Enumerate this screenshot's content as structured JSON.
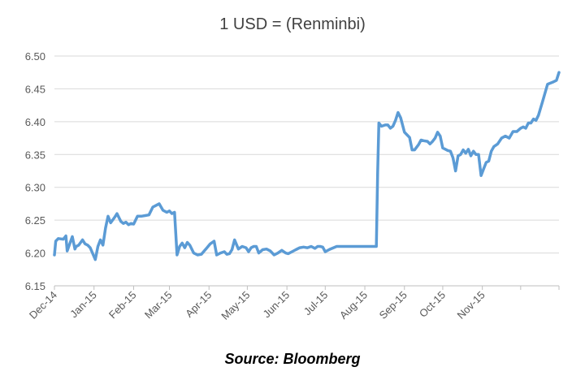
{
  "chart_data": {
    "type": "line",
    "title": "1 USD = (Renminbi)",
    "xlabel": "",
    "ylabel": "",
    "ylim": [
      6.15,
      6.5
    ],
    "yticks": [
      "6.15",
      "6.20",
      "6.25",
      "6.30",
      "6.35",
      "6.40",
      "6.45",
      "6.50"
    ],
    "xticks": [
      "Dec-14",
      "Jan-15",
      "Feb-15",
      "Mar-15",
      "Apr-15",
      "May-15",
      "Jun-15",
      "Jul-15",
      "Aug-15",
      "Sep-15",
      "Oct-15",
      "Nov-15"
    ],
    "grid": "horizontal",
    "legend": "none",
    "color": "#5b9bd5",
    "series": [
      {
        "x": [
          "2014-12-01",
          "2014-12-02",
          "2014-12-04",
          "2014-12-08",
          "2014-12-10",
          "2014-12-11",
          "2014-12-15",
          "2014-12-17",
          "2014-12-18",
          "2014-12-20",
          "2014-12-23",
          "2014-12-25",
          "2014-12-27",
          "2014-12-29",
          "2015-01-02",
          "2015-01-04",
          "2015-01-06",
          "2015-01-08",
          "2015-01-10",
          "2015-01-12",
          "2015-01-14",
          "2015-01-17",
          "2015-01-19",
          "2015-01-22",
          "2015-01-24",
          "2015-01-26",
          "2015-01-28",
          "2015-01-30",
          "2015-02-01",
          "2015-02-04",
          "2015-02-07",
          "2015-02-10",
          "2015-02-13",
          "2015-02-16",
          "2015-02-18",
          "2015-02-21",
          "2015-02-24",
          "2015-02-27",
          "2015-03-01",
          "2015-03-03",
          "2015-03-05",
          "2015-03-07",
          "2015-03-09",
          "2015-03-11",
          "2015-03-13",
          "2015-03-15",
          "2015-03-17",
          "2015-03-20",
          "2015-03-23",
          "2015-03-26",
          "2015-03-30",
          "2015-04-02",
          "2015-04-05",
          "2015-04-07",
          "2015-04-10",
          "2015-04-13",
          "2015-04-15",
          "2015-04-17",
          "2015-04-19",
          "2015-04-21",
          "2015-04-24",
          "2015-04-27",
          "2015-04-30",
          "2015-05-02",
          "2015-05-04",
          "2015-05-06",
          "2015-05-08",
          "2015-05-10",
          "2015-05-13",
          "2015-05-16",
          "2015-05-19",
          "2015-05-22",
          "2015-05-25",
          "2015-05-28",
          "2015-05-31",
          "2015-06-02",
          "2015-06-05",
          "2015-06-08",
          "2015-06-11",
          "2015-06-14",
          "2015-06-17",
          "2015-06-20",
          "2015-06-23",
          "2015-06-25",
          "2015-06-27",
          "2015-06-29",
          "2015-07-01",
          "2015-07-05",
          "2015-07-10",
          "2015-07-15",
          "2015-07-20",
          "2015-07-25",
          "2015-07-30",
          "2015-08-03",
          "2015-08-05",
          "2015-08-07",
          "2015-08-10",
          "2015-08-11",
          "2015-08-12",
          "2015-08-14",
          "2015-08-17",
          "2015-08-19",
          "2015-08-21",
          "2015-08-23",
          "2015-08-25",
          "2015-08-27",
          "2015-08-29",
          "2015-09-01",
          "2015-09-03",
          "2015-09-05",
          "2015-09-07",
          "2015-09-09",
          "2015-09-12",
          "2015-09-14",
          "2015-09-16",
          "2015-09-19",
          "2015-09-21",
          "2015-09-23",
          "2015-09-25",
          "2015-09-27",
          "2015-09-29",
          "2015-10-01",
          "2015-10-03",
          "2015-10-05",
          "2015-10-07",
          "2015-10-09",
          "2015-10-11",
          "2015-10-13",
          "2015-10-15",
          "2015-10-17",
          "2015-10-19",
          "2015-10-21",
          "2015-10-23",
          "2015-10-25",
          "2015-10-27",
          "2015-10-29",
          "2015-10-31",
          "2015-11-02",
          "2015-11-04",
          "2015-11-06",
          "2015-11-08",
          "2015-11-10",
          "2015-11-13",
          "2015-11-16",
          "2015-11-19",
          "2015-11-22",
          "2015-11-25",
          "2015-11-28",
          "2015-12-01",
          "2015-12-03",
          "2015-12-05",
          "2015-12-07",
          "2015-12-09",
          "2015-12-11",
          "2015-12-13",
          "2015-12-15",
          "2015-12-18",
          "2015-12-22",
          "2015-12-26",
          "2015-12-29",
          "2015-12-31"
        ],
        "y": [
          6.197,
          6.218,
          6.222,
          6.221,
          6.226,
          6.203,
          6.225,
          6.206,
          6.21,
          6.212,
          6.22,
          6.214,
          6.212,
          6.208,
          6.19,
          6.21,
          6.22,
          6.212,
          6.238,
          6.256,
          6.246,
          6.254,
          6.26,
          6.248,
          6.245,
          6.247,
          6.243,
          6.245,
          6.244,
          6.256,
          6.256,
          6.257,
          6.258,
          6.27,
          6.272,
          6.275,
          6.265,
          6.262,
          6.264,
          6.26,
          6.262,
          6.197,
          6.21,
          6.215,
          6.208,
          6.216,
          6.212,
          6.2,
          6.197,
          6.198,
          6.207,
          6.214,
          6.218,
          6.197,
          6.2,
          6.202,
          6.198,
          6.199,
          6.205,
          6.22,
          6.206,
          6.21,
          6.208,
          6.202,
          6.208,
          6.21,
          6.21,
          6.2,
          6.205,
          6.206,
          6.203,
          6.197,
          6.2,
          6.204,
          6.2,
          6.199,
          6.202,
          6.205,
          6.208,
          6.209,
          6.208,
          6.21,
          6.207,
          6.21,
          6.21,
          6.209,
          6.202,
          6.206,
          6.21,
          6.21,
          6.21,
          6.21,
          6.21,
          6.21,
          6.21,
          6.21,
          6.21,
          6.322,
          6.398,
          6.393,
          6.395,
          6.395,
          6.39,
          6.393,
          6.402,
          6.414,
          6.406,
          6.384,
          6.38,
          6.376,
          6.357,
          6.357,
          6.365,
          6.372,
          6.371,
          6.37,
          6.366,
          6.37,
          6.375,
          6.384,
          6.378,
          6.36,
          6.358,
          6.356,
          6.355,
          6.345,
          6.325,
          6.348,
          6.35,
          6.357,
          6.352,
          6.358,
          6.348,
          6.355,
          6.35,
          6.35,
          6.318,
          6.328,
          6.338,
          6.34,
          6.355,
          6.362,
          6.366,
          6.375,
          6.378,
          6.375,
          6.385,
          6.385,
          6.39,
          6.392,
          6.39,
          6.398,
          6.398,
          6.404,
          6.402,
          6.41,
          6.43,
          6.457,
          6.46,
          6.463,
          6.475
        ]
      }
    ]
  },
  "footer": {
    "source": "Source: Bloomberg"
  }
}
